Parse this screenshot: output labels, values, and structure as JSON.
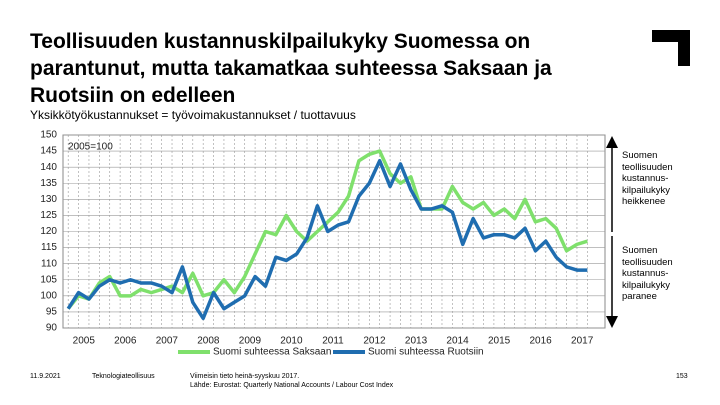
{
  "chart_data": {
    "type": "line",
    "title": "Teollisuuden kustannuskilpailukyky Suomessa on parantunut, mutta takamatkaa suhteessa Saksaan ja Ruotsiin on edelleen",
    "subtitle": "Yksikkötyökustannukset = työvoimakustannukset / tuottavuus",
    "annotation": "2005=100",
    "note_up": [
      "Suomen",
      "teollisuuden",
      "kustannus-",
      "kilpailukyky",
      "heikkenee"
    ],
    "note_down": [
      "Suomen",
      "teollisuuden",
      "kustannus-",
      "kilpailukyky",
      "paranee"
    ],
    "x": [
      2004.625,
      2004.875,
      2005.125,
      2005.375,
      2005.625,
      2005.875,
      2006.125,
      2006.375,
      2006.625,
      2006.875,
      2007.125,
      2007.375,
      2007.625,
      2007.875,
      2008.125,
      2008.375,
      2008.625,
      2008.875,
      2009.125,
      2009.375,
      2009.625,
      2009.875,
      2010.125,
      2010.375,
      2010.625,
      2010.875,
      2011.125,
      2011.375,
      2011.625,
      2011.875,
      2012.125,
      2012.375,
      2012.625,
      2012.875,
      2013.125,
      2013.375,
      2013.625,
      2013.875,
      2014.125,
      2014.375,
      2014.625,
      2014.875,
      2015.125,
      2015.375,
      2015.625,
      2015.875,
      2016.125,
      2016.375,
      2016.625,
      2016.875,
      2017.125
    ],
    "series": [
      {
        "name": "Suomi suhteessa Saksaan",
        "color": "#7fe06c",
        "values": [
          96,
          100,
          99,
          104,
          106,
          100,
          100,
          102,
          101,
          102,
          103,
          101,
          107,
          100,
          101,
          105,
          101,
          106,
          113,
          120,
          119,
          125,
          120,
          117,
          120,
          123,
          126,
          131,
          142,
          144,
          145,
          138,
          135,
          137,
          127,
          127,
          127,
          134,
          129,
          127,
          129,
          125,
          127,
          124,
          130,
          123,
          124,
          121,
          114,
          116,
          117
        ]
      },
      {
        "name": "Suomi suhteessa Ruotsiin",
        "color": "#1f6db0",
        "values": [
          96,
          101,
          99,
          103,
          105,
          104,
          105,
          104,
          104,
          103,
          101,
          109,
          98,
          93,
          101,
          96,
          98,
          100,
          106,
          103,
          112,
          111,
          113,
          118,
          128,
          120,
          122,
          123,
          131,
          135,
          142,
          134,
          141,
          133,
          127,
          127,
          128,
          126,
          116,
          124,
          118,
          119,
          119,
          118,
          121,
          114,
          117,
          112,
          109,
          108,
          108
        ]
      }
    ],
    "xlim": [
      2004.5,
      2017.55
    ],
    "xticks": [
      2005,
      2006,
      2007,
      2008,
      2009,
      2010,
      2011,
      2012,
      2013,
      2014,
      2015,
      2016,
      2017
    ],
    "ylim": [
      90,
      150
    ],
    "yticks": [
      90,
      95,
      100,
      105,
      110,
      115,
      120,
      125,
      130,
      135,
      140,
      145,
      150
    ],
    "grid": true
  },
  "footer": {
    "date": "11.9.2021",
    "org": "Teknologiateollisuus",
    "latest": "Viimeisin tieto heinä-syyskuu 2017.",
    "source": "Lähde: Eurostat: Quarterly National Accounts / Labour Cost Index",
    "page": "153"
  }
}
